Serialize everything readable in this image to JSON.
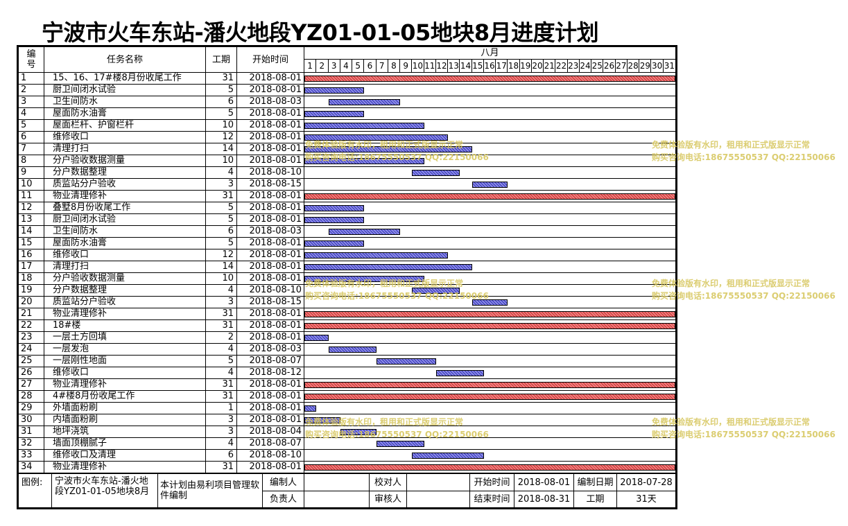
{
  "title": "宁波市火车东站-潘火地段YZ01-01-05地块8月进度计划",
  "headers": {
    "id_line1": "编",
    "id_line2": "号",
    "task": "任务名称",
    "duration": "工期",
    "start": "开始时间",
    "month": "八月"
  },
  "days": [
    "1",
    "2",
    "3",
    "4",
    "5",
    "6",
    "7",
    "8",
    "9",
    "10",
    "11",
    "12",
    "13",
    "14",
    "15",
    "16",
    "17",
    "18",
    "19",
    "20",
    "21",
    "22",
    "23",
    "24",
    "25",
    "26",
    "27",
    "28",
    "29",
    "30",
    "31"
  ],
  "tasks": [
    {
      "id": "1",
      "name": "15、16、17#楼8月份收尾工作",
      "duration": "31",
      "start": "2018-08-01",
      "startDay": 1,
      "days": 31,
      "summary": true
    },
    {
      "id": "2",
      "name": "厨卫间闭水试验",
      "duration": "5",
      "start": "2018-08-01",
      "startDay": 1,
      "days": 5,
      "summary": false
    },
    {
      "id": "3",
      "name": "卫生间防水",
      "duration": "6",
      "start": "2018-08-03",
      "startDay": 3,
      "days": 6,
      "summary": false
    },
    {
      "id": "4",
      "name": "屋面防水油膏",
      "duration": "5",
      "start": "2018-08-01",
      "startDay": 1,
      "days": 5,
      "summary": false
    },
    {
      "id": "5",
      "name": "屋面栏杆、护窗栏杆",
      "duration": "10",
      "start": "2018-08-01",
      "startDay": 1,
      "days": 10,
      "summary": false
    },
    {
      "id": "6",
      "name": "维修收口",
      "duration": "12",
      "start": "2018-08-01",
      "startDay": 1,
      "days": 12,
      "summary": false
    },
    {
      "id": "7",
      "name": "清理打扫",
      "duration": "14",
      "start": "2018-08-01",
      "startDay": 1,
      "days": 14,
      "summary": false
    },
    {
      "id": "8",
      "name": "分户验收数据测量",
      "duration": "10",
      "start": "2018-08-01",
      "startDay": 1,
      "days": 10,
      "summary": false
    },
    {
      "id": "9",
      "name": "分户数据整理",
      "duration": "4",
      "start": "2018-08-10",
      "startDay": 10,
      "days": 4,
      "summary": false
    },
    {
      "id": "10",
      "name": "质监站分户验收",
      "duration": "3",
      "start": "2018-08-15",
      "startDay": 15,
      "days": 3,
      "summary": false
    },
    {
      "id": "11",
      "name": "物业清理修补",
      "duration": "31",
      "start": "2018-08-01",
      "startDay": 1,
      "days": 31,
      "summary": true
    },
    {
      "id": "12",
      "name": "叠墅8月份收尾工作",
      "duration": "5",
      "start": "2018-08-01",
      "startDay": 1,
      "days": 5,
      "summary": false
    },
    {
      "id": "13",
      "name": "厨卫间闭水试验",
      "duration": "5",
      "start": "2018-08-01",
      "startDay": 1,
      "days": 5,
      "summary": false
    },
    {
      "id": "14",
      "name": "卫生间防水",
      "duration": "6",
      "start": "2018-08-03",
      "startDay": 3,
      "days": 6,
      "summary": false
    },
    {
      "id": "15",
      "name": "屋面防水油膏",
      "duration": "5",
      "start": "2018-08-01",
      "startDay": 1,
      "days": 5,
      "summary": false
    },
    {
      "id": "16",
      "name": "维修收口",
      "duration": "12",
      "start": "2018-08-01",
      "startDay": 1,
      "days": 12,
      "summary": false
    },
    {
      "id": "17",
      "name": "清理打扫",
      "duration": "14",
      "start": "2018-08-01",
      "startDay": 1,
      "days": 14,
      "summary": false
    },
    {
      "id": "18",
      "name": "分户验收数据测量",
      "duration": "10",
      "start": "2018-08-01",
      "startDay": 1,
      "days": 10,
      "summary": false
    },
    {
      "id": "19",
      "name": "分户数据整理",
      "duration": "4",
      "start": "2018-08-10",
      "startDay": 10,
      "days": 4,
      "summary": false
    },
    {
      "id": "20",
      "name": "质监站分户验收",
      "duration": "3",
      "start": "2018-08-15",
      "startDay": 15,
      "days": 3,
      "summary": false
    },
    {
      "id": "21",
      "name": "物业清理修补",
      "duration": "31",
      "start": "2018-08-01",
      "startDay": 1,
      "days": 31,
      "summary": true
    },
    {
      "id": "22",
      "name": "18#楼",
      "duration": "31",
      "start": "2018-08-01",
      "startDay": 1,
      "days": 31,
      "summary": true
    },
    {
      "id": "23",
      "name": "一层土方回填",
      "duration": "2",
      "start": "2018-08-01",
      "startDay": 1,
      "days": 2,
      "summary": false
    },
    {
      "id": "24",
      "name": "一层发泡",
      "duration": "4",
      "start": "2018-08-03",
      "startDay": 3,
      "days": 4,
      "summary": false
    },
    {
      "id": "25",
      "name": "一层刚性地面",
      "duration": "5",
      "start": "2018-08-07",
      "startDay": 7,
      "days": 5,
      "summary": false
    },
    {
      "id": "26",
      "name": "维修收口",
      "duration": "4",
      "start": "2018-08-12",
      "startDay": 12,
      "days": 4,
      "summary": false
    },
    {
      "id": "27",
      "name": "物业清理修补",
      "duration": "31",
      "start": "2018-08-01",
      "startDay": 1,
      "days": 31,
      "summary": true
    },
    {
      "id": "28",
      "name": "4#楼8月份收尾工作",
      "duration": "31",
      "start": "2018-08-01",
      "startDay": 1,
      "days": 31,
      "summary": true
    },
    {
      "id": "29",
      "name": "外墙面粉刷",
      "duration": "1",
      "start": "2018-08-01",
      "startDay": 1,
      "days": 1,
      "summary": false
    },
    {
      "id": "30",
      "name": "内墙面粉刷",
      "duration": "3",
      "start": "2018-08-01",
      "startDay": 1,
      "days": 3,
      "summary": false
    },
    {
      "id": "31",
      "name": "地坪浇筑",
      "duration": "3",
      "start": "2018-08-04",
      "startDay": 4,
      "days": 3,
      "summary": false
    },
    {
      "id": "32",
      "name": "墙面顶棚腻子",
      "duration": "4",
      "start": "2018-08-07",
      "startDay": 7,
      "days": 4,
      "summary": false
    },
    {
      "id": "33",
      "name": "维修收口及清理",
      "duration": "6",
      "start": "2018-08-10",
      "startDay": 10,
      "days": 6,
      "summary": false
    },
    {
      "id": "34",
      "name": "物业清理修补",
      "duration": "31",
      "start": "2018-08-01",
      "startDay": 1,
      "days": 31,
      "summary": true
    }
  ],
  "footer": {
    "legend_label": "图例:",
    "project_name": "宁波市火车东站-潘火地段YZ01-01-05地块8月",
    "software_note": "本计划由易利项目管理软件编制",
    "compiler_label": "编制人",
    "compiler_value": "",
    "checker_label": "校对人",
    "checker_value": "",
    "start_label": "开始时间",
    "start_value": "2018-08-01",
    "created_label": "编制日期",
    "created_value": "2018-07-28",
    "owner_label": "负责人",
    "owner_value": "",
    "reviewer_label": "审核人",
    "reviewer_value": "",
    "end_label": "结束时间",
    "end_value": "2018-08-31",
    "duration_label": "工期",
    "duration_value": "31天"
  },
  "watermark": {
    "line1": "免费体验版有水印，租用和正式版显示正常",
    "line2": "购买咨询电话:18675550537 QQ:22150066"
  },
  "colors": {
    "summary_bar": "#e04848",
    "task_bar": "#4e4fc9",
    "watermark": "#d8c862"
  }
}
